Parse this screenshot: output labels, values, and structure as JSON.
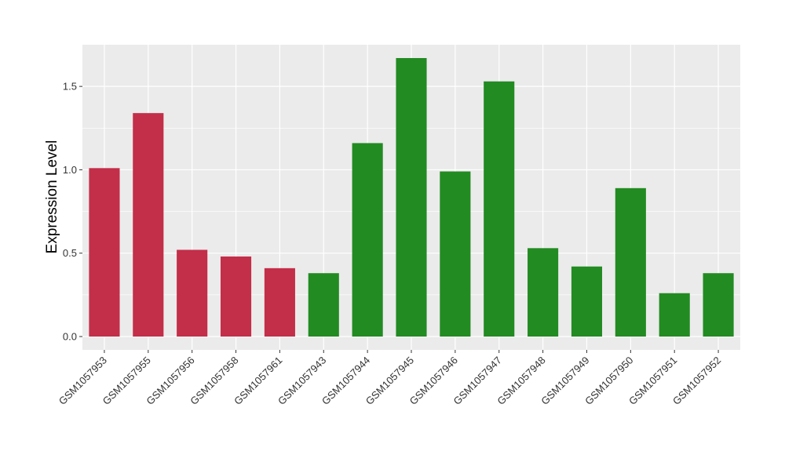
{
  "chart_data": {
    "type": "bar",
    "title": "",
    "xlabel": "",
    "ylabel": "Expression Level",
    "ylim": [
      -0.08,
      1.75
    ],
    "yticks": [
      0.0,
      0.5,
      1.0,
      1.5
    ],
    "ytick_labels": [
      "0.0",
      "0.5",
      "1.0",
      "1.5"
    ],
    "grid": true,
    "legend": "none",
    "categories": [
      "GSM1057953",
      "GSM1057955",
      "GSM1057956",
      "GSM1057958",
      "GSM1057961",
      "GSM1057943",
      "GSM1057944",
      "GSM1057945",
      "GSM1057946",
      "GSM1057947",
      "GSM1057948",
      "GSM1057949",
      "GSM1057950",
      "GSM1057951",
      "GSM1057952"
    ],
    "values": [
      1.01,
      1.34,
      0.52,
      0.48,
      0.41,
      0.38,
      1.16,
      1.67,
      0.99,
      1.53,
      0.53,
      0.42,
      0.89,
      0.26,
      0.38
    ],
    "groups": [
      "red",
      "red",
      "red",
      "red",
      "red",
      "green",
      "green",
      "green",
      "green",
      "green",
      "green",
      "green",
      "green",
      "green",
      "green"
    ],
    "colors": {
      "red": "#C32E49",
      "green": "#228B22",
      "panel": "#EBEBEB",
      "grid": "#FFFFFF",
      "axis_text": "#333333"
    }
  }
}
